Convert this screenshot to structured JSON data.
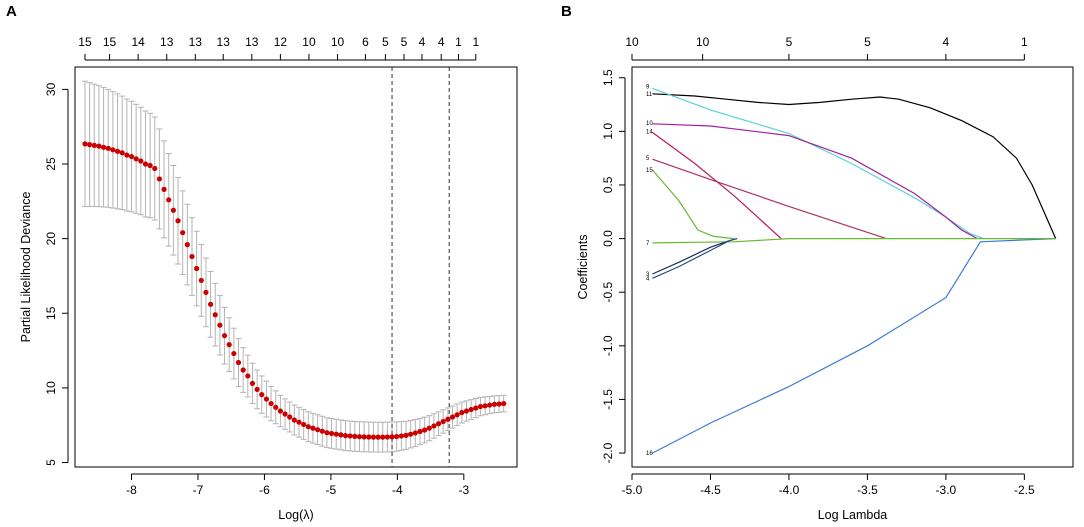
{
  "chart_data": [
    {
      "panel": "A",
      "type": "scatter",
      "subtype": "cross-validation curve with error bars",
      "xlabel": "Log(λ)",
      "ylabel": "Partial Likelihood Deviance",
      "xlim": [
        -8.85,
        -2.2
      ],
      "ylim": [
        4.7,
        31.5
      ],
      "x_ticks": [
        -8,
        -7,
        -6,
        -5,
        -4,
        -3
      ],
      "x_tick_labels": [
        "-8",
        "-7",
        "-6",
        "-5",
        "-4",
        "-3"
      ],
      "y_ticks": [
        5,
        10,
        15,
        20,
        25,
        30
      ],
      "y_tick_labels": [
        "5",
        "10",
        "15",
        "20",
        "25",
        "30"
      ],
      "top_axis": {
        "positions": [
          -8.7,
          -8.33,
          -7.9,
          -7.47,
          -7.04,
          -6.62,
          -6.19,
          -5.76,
          -5.33,
          -4.9,
          -4.48,
          -4.18,
          -3.9,
          -3.63,
          -3.34,
          -3.08,
          -2.82
        ],
        "labels": [
          "15",
          "15",
          "14",
          "13",
          "13",
          "13",
          "13",
          "12",
          "10",
          "10",
          "6",
          "5",
          "5",
          "4",
          "4",
          "1",
          "1"
        ]
      },
      "vlines": [
        -4.08,
        -3.22
      ],
      "colors": {
        "points": "#cc0000",
        "error_bars": "#b3b3b3",
        "vlines": "#333333"
      },
      "x": [
        -8.7,
        -8.63,
        -8.56,
        -8.49,
        -8.42,
        -8.35,
        -8.28,
        -8.21,
        -8.14,
        -8.07,
        -8.0,
        -7.93,
        -7.86,
        -7.79,
        -7.72,
        -7.65,
        -7.58,
        -7.51,
        -7.44,
        -7.37,
        -7.3,
        -7.23,
        -7.16,
        -7.09,
        -7.02,
        -6.95,
        -6.88,
        -6.81,
        -6.74,
        -6.67,
        -6.6,
        -6.53,
        -6.46,
        -6.39,
        -6.32,
        -6.25,
        -6.18,
        -6.11,
        -6.04,
        -5.97,
        -5.9,
        -5.83,
        -5.76,
        -5.69,
        -5.62,
        -5.55,
        -5.48,
        -5.41,
        -5.34,
        -5.27,
        -5.2,
        -5.13,
        -5.06,
        -4.99,
        -4.92,
        -4.85,
        -4.78,
        -4.71,
        -4.64,
        -4.57,
        -4.5,
        -4.43,
        -4.36,
        -4.29,
        -4.22,
        -4.15,
        -4.08,
        -4.01,
        -3.94,
        -3.87,
        -3.8,
        -3.73,
        -3.66,
        -3.59,
        -3.52,
        -3.45,
        -3.38,
        -3.31,
        -3.24,
        -3.17,
        -3.1,
        -3.03,
        -2.96,
        -2.89,
        -2.82,
        -2.75,
        -2.68,
        -2.61,
        -2.54,
        -2.47,
        -2.4
      ],
      "y": [
        26.35,
        26.3,
        26.25,
        26.2,
        26.12,
        26.05,
        25.95,
        25.85,
        25.75,
        25.6,
        25.5,
        25.35,
        25.2,
        25.0,
        24.9,
        24.7,
        24.0,
        23.3,
        22.6,
        21.9,
        21.2,
        20.4,
        19.6,
        18.8,
        18.0,
        17.2,
        16.4,
        15.6,
        14.9,
        14.2,
        13.5,
        12.9,
        12.3,
        11.7,
        11.2,
        10.8,
        10.3,
        9.9,
        9.55,
        9.25,
        8.95,
        8.7,
        8.45,
        8.25,
        8.05,
        7.85,
        7.7,
        7.55,
        7.4,
        7.3,
        7.2,
        7.1,
        7.0,
        6.95,
        6.9,
        6.85,
        6.8,
        6.78,
        6.75,
        6.73,
        6.72,
        6.71,
        6.7,
        6.7,
        6.7,
        6.71,
        6.72,
        6.74,
        6.78,
        6.82,
        6.9,
        6.98,
        7.08,
        7.18,
        7.3,
        7.45,
        7.6,
        7.75,
        7.9,
        8.05,
        8.2,
        8.35,
        8.45,
        8.55,
        8.65,
        8.75,
        8.8,
        8.85,
        8.9,
        8.92,
        8.95
      ],
      "err": [
        4.2,
        4.15,
        4.1,
        4.05,
        4.0,
        3.95,
        3.9,
        3.85,
        3.8,
        3.75,
        3.7,
        3.65,
        3.6,
        3.55,
        3.5,
        3.45,
        3.35,
        3.25,
        3.1,
        3.0,
        2.9,
        2.8,
        2.7,
        2.6,
        2.5,
        2.4,
        2.3,
        2.2,
        2.1,
        2.0,
        1.9,
        1.8,
        1.7,
        1.6,
        1.5,
        1.4,
        1.35,
        1.3,
        1.25,
        1.2,
        1.15,
        1.1,
        1.05,
        1.02,
        1.0,
        1.0,
        1.0,
        1.0,
        1.0,
        1.0,
        1.0,
        1.0,
        1.0,
        1.0,
        1.0,
        1.0,
        1.0,
        1.0,
        1.0,
        1.0,
        1.0,
        1.0,
        1.0,
        1.0,
        1.0,
        1.0,
        1.0,
        0.98,
        0.96,
        0.94,
        0.92,
        0.9,
        0.88,
        0.86,
        0.84,
        0.82,
        0.8,
        0.78,
        0.76,
        0.74,
        0.72,
        0.7,
        0.68,
        0.66,
        0.64,
        0.62,
        0.6,
        0.58,
        0.57,
        0.56,
        0.55
      ]
    },
    {
      "panel": "B",
      "type": "line",
      "subtype": "coefficient path",
      "xlabel": "Log Lambda",
      "ylabel": "Coefficients",
      "xlim": [
        -5.0,
        -2.19
      ],
      "ylim": [
        -2.13,
        1.6
      ],
      "x_ticks": [
        -5.0,
        -4.5,
        -4.0,
        -3.5,
        -3.0,
        -2.5
      ],
      "x_tick_labels": [
        "-5.0",
        "-4.5",
        "-4.0",
        "-3.5",
        "-3.0",
        "-2.5"
      ],
      "y_ticks": [
        -2.0,
        -1.5,
        -1.0,
        -0.5,
        0.0,
        0.5,
        1.0,
        1.5
      ],
      "y_tick_labels": [
        "-2.0",
        "-1.5",
        "-1.0",
        "-0.5",
        "0.0",
        "0.5",
        "1.0",
        "1.5"
      ],
      "top_axis": {
        "positions": [
          -5.0,
          -4.55,
          -4.0,
          -3.5,
          -3.0,
          -2.5
        ],
        "labels": [
          "10",
          "10",
          "5",
          "5",
          "4",
          "1"
        ]
      },
      "series": [
        {
          "name": "16",
          "color": "#3d7bd6",
          "x": [
            -4.87,
            -4.5,
            -4.0,
            -3.5,
            -3.0,
            -2.78,
            -2.3
          ],
          "y": [
            -2.0,
            -1.72,
            -1.38,
            -1.0,
            -0.55,
            -0.03,
            0.0
          ]
        },
        {
          "name": "11",
          "color": "#000000",
          "x": [
            -4.87,
            -4.6,
            -4.4,
            -4.2,
            -4.0,
            -3.8,
            -3.6,
            -3.42,
            -3.3,
            -3.1,
            -2.9,
            -2.7,
            -2.55,
            -2.45,
            -2.36,
            -2.3
          ],
          "y": [
            1.35,
            1.33,
            1.3,
            1.27,
            1.25,
            1.27,
            1.3,
            1.32,
            1.3,
            1.22,
            1.1,
            0.95,
            0.75,
            0.5,
            0.2,
            0.0
          ]
        },
        {
          "name": "9",
          "color": "#55d4d4",
          "x": [
            -4.87,
            -4.5,
            -4.0,
            -3.6,
            -3.2,
            -3.0,
            -2.85,
            -2.76
          ],
          "y": [
            1.4,
            1.2,
            0.98,
            0.7,
            0.38,
            0.2,
            0.05,
            0.0
          ]
        },
        {
          "name": "10",
          "color": "#a020a0",
          "x": [
            -4.87,
            -4.5,
            -4.0,
            -3.6,
            -3.2,
            -3.0,
            -2.9,
            -2.8
          ],
          "y": [
            1.07,
            1.05,
            0.96,
            0.75,
            0.42,
            0.2,
            0.08,
            0.0
          ]
        },
        {
          "name": "14",
          "color": "#c2185b",
          "x": [
            -4.87,
            -4.6,
            -4.35,
            -4.2,
            -4.05
          ],
          "y": [
            0.99,
            0.7,
            0.4,
            0.2,
            0.0
          ]
        },
        {
          "name": "5",
          "color": "#b03060",
          "x": [
            -4.87,
            -4.5,
            -4.0,
            -3.38
          ],
          "y": [
            0.74,
            0.55,
            0.3,
            0.0
          ]
        },
        {
          "name": "15",
          "color": "#66bb33",
          "x": [
            -4.87,
            -4.7,
            -4.58,
            -4.48,
            -4.35
          ],
          "y": [
            0.64,
            0.35,
            0.08,
            0.02,
            0.0
          ]
        },
        {
          "name": "7",
          "color": "#66bb33",
          "x": [
            -4.87,
            -4.35,
            -4.0,
            -3.0,
            -2.3
          ],
          "y": [
            -0.04,
            -0.03,
            0.0,
            0.0,
            0.0
          ]
        },
        {
          "name": "3",
          "color": "#1c2b5c",
          "x": [
            -4.87,
            -4.7,
            -4.5,
            -4.38,
            -4.33
          ],
          "y": [
            -0.33,
            -0.22,
            -0.08,
            -0.02,
            0.0
          ]
        },
        {
          "name": "4",
          "color": "#2a4a8a",
          "x": [
            -4.87,
            -4.7,
            -4.5,
            -4.38,
            -4.33
          ],
          "y": [
            -0.37,
            -0.26,
            -0.11,
            -0.02,
            0.0
          ]
        }
      ],
      "line_end_labels": [
        {
          "text": "9",
          "y": 1.42
        },
        {
          "text": "11",
          "y": 1.35
        },
        {
          "text": "10",
          "y": 1.08
        },
        {
          "text": "14",
          "y": 1.0
        },
        {
          "text": "5",
          "y": 0.75
        },
        {
          "text": "15",
          "y": 0.64
        },
        {
          "text": "7",
          "y": -0.04
        },
        {
          "text": "3",
          "y": -0.33
        },
        {
          "text": "4",
          "y": -0.37
        },
        {
          "text": "16",
          "y": -2.0
        }
      ]
    }
  ],
  "panels": {
    "a": {
      "letter": "A"
    },
    "b": {
      "letter": "B"
    }
  }
}
